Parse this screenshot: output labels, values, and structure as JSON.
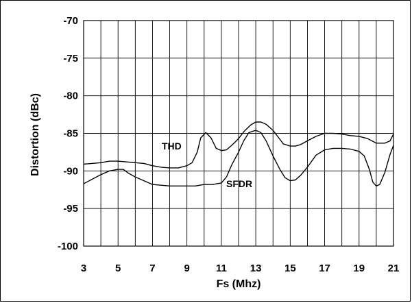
{
  "chart_data": {
    "type": "line",
    "title": "",
    "xlabel": "Fs (Mhz)",
    "ylabel": "Distortion (dBc)",
    "xlim": [
      3,
      21
    ],
    "ylim": [
      -100,
      -70
    ],
    "x_ticks": [
      3,
      5,
      7,
      9,
      11,
      13,
      15,
      17,
      19,
      21
    ],
    "y_ticks": [
      -70,
      -75,
      -80,
      -85,
      -90,
      -95,
      -100
    ],
    "grid": true,
    "legend": "none",
    "series": [
      {
        "name": "THD",
        "points": [
          [
            3,
            -89.1
          ],
          [
            4,
            -88.9
          ],
          [
            4.5,
            -88.7
          ],
          [
            5,
            -88.7
          ],
          [
            5.5,
            -88.8
          ],
          [
            6,
            -88.9
          ],
          [
            6.5,
            -89.0
          ],
          [
            7,
            -89.3
          ],
          [
            7.5,
            -89.5
          ],
          [
            8,
            -89.6
          ],
          [
            8.5,
            -89.6
          ],
          [
            9,
            -89.3
          ],
          [
            9.3,
            -88.9
          ],
          [
            9.6,
            -87.5
          ],
          [
            9.8,
            -85.6
          ],
          [
            10.1,
            -84.9
          ],
          [
            10.4,
            -85.6
          ],
          [
            10.7,
            -87.0
          ],
          [
            11,
            -87.3
          ],
          [
            11.3,
            -87.2
          ],
          [
            11.6,
            -86.6
          ],
          [
            12,
            -85.7
          ],
          [
            12.3,
            -84.8
          ],
          [
            12.7,
            -83.9
          ],
          [
            13,
            -83.5
          ],
          [
            13.3,
            -83.5
          ],
          [
            13.6,
            -83.8
          ],
          [
            14,
            -84.6
          ],
          [
            14.3,
            -85.5
          ],
          [
            14.6,
            -86.4
          ],
          [
            15,
            -86.7
          ],
          [
            15.3,
            -86.7
          ],
          [
            15.6,
            -86.5
          ],
          [
            16,
            -86.0
          ],
          [
            16.5,
            -85.4
          ],
          [
            17,
            -85.0
          ],
          [
            17.5,
            -85.0
          ],
          [
            18,
            -85.1
          ],
          [
            18.5,
            -85.3
          ],
          [
            19,
            -85.4
          ],
          [
            19.5,
            -85.7
          ],
          [
            20,
            -86.3
          ],
          [
            20.5,
            -86.3
          ],
          [
            20.8,
            -86.0
          ],
          [
            21,
            -85.1
          ]
        ]
      },
      {
        "name": "SFDR",
        "points": [
          [
            3,
            -91.7
          ],
          [
            3.5,
            -91.1
          ],
          [
            4,
            -90.5
          ],
          [
            4.5,
            -90.0
          ],
          [
            5,
            -89.8
          ],
          [
            5.3,
            -89.8
          ],
          [
            5.6,
            -90.3
          ],
          [
            6,
            -90.8
          ],
          [
            6.5,
            -91.3
          ],
          [
            7,
            -91.8
          ],
          [
            7.5,
            -91.9
          ],
          [
            8,
            -92.0
          ],
          [
            8.5,
            -92.0
          ],
          [
            9,
            -92.0
          ],
          [
            9.5,
            -92.0
          ],
          [
            10,
            -91.8
          ],
          [
            10.5,
            -91.8
          ],
          [
            11,
            -91.6
          ],
          [
            11.3,
            -90.8
          ],
          [
            11.6,
            -89.2
          ],
          [
            12,
            -87.5
          ],
          [
            12.3,
            -86.0
          ],
          [
            12.6,
            -84.9
          ],
          [
            13,
            -84.6
          ],
          [
            13.3,
            -84.9
          ],
          [
            13.6,
            -86.0
          ],
          [
            14,
            -88.0
          ],
          [
            14.4,
            -89.8
          ],
          [
            14.7,
            -90.9
          ],
          [
            15,
            -91.3
          ],
          [
            15.3,
            -91.2
          ],
          [
            15.6,
            -90.6
          ],
          [
            16,
            -89.5
          ],
          [
            16.5,
            -87.9
          ],
          [
            17,
            -87.2
          ],
          [
            17.5,
            -87.0
          ],
          [
            18,
            -87.0
          ],
          [
            18.5,
            -87.1
          ],
          [
            19,
            -87.4
          ],
          [
            19.3,
            -88.0
          ],
          [
            19.6,
            -89.8
          ],
          [
            19.8,
            -91.5
          ],
          [
            20,
            -92.0
          ],
          [
            20.2,
            -91.8
          ],
          [
            20.5,
            -90.2
          ],
          [
            20.8,
            -87.8
          ],
          [
            21,
            -86.6
          ]
        ]
      }
    ]
  }
}
